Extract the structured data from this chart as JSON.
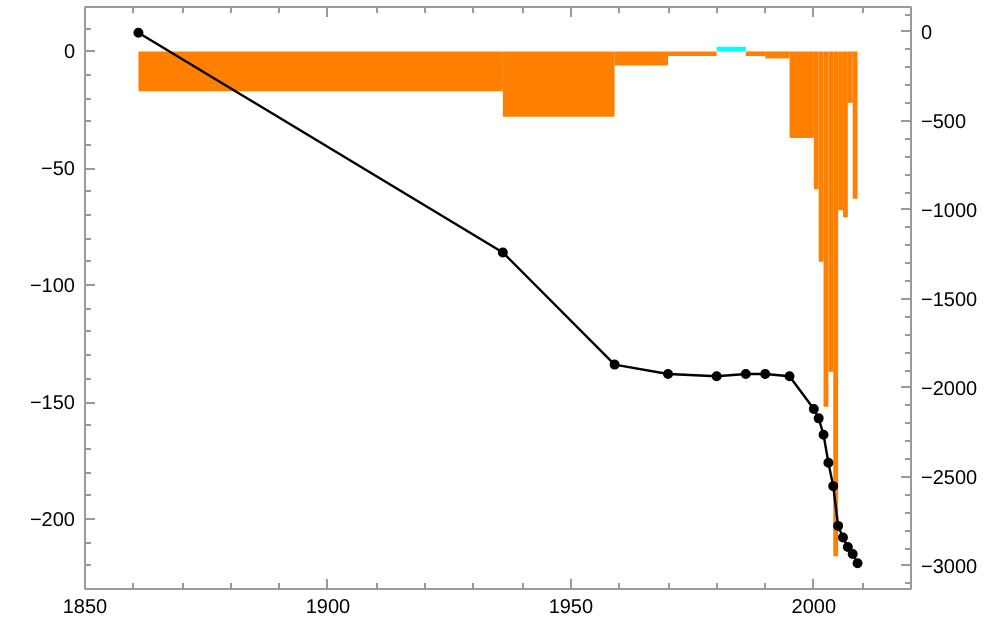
{
  "chart_data": {
    "type": "histogram",
    "xlim": [
      1850,
      2020
    ],
    "xticks": [
      1850,
      1900,
      1950,
      2000
    ],
    "ylim": [
      -230,
      19
    ],
    "yticks": [
      {
        "value": -200,
        "label": "−200"
      },
      {
        "value": -150,
        "label": "−150"
      },
      {
        "value": -100,
        "label": "−100"
      },
      {
        "value": -50,
        "label": "−50"
      },
      0
    ],
    "y2lim": [
      -3130,
      140
    ],
    "y2ticks": [
      {
        "value": -3000,
        "label": "−3000"
      },
      {
        "value": -2500,
        "label": "−2500"
      },
      {
        "value": -2000,
        "label": "−2000"
      },
      {
        "value": -1500,
        "label": "−1500"
      },
      {
        "value": -1000,
        "label": "−1000"
      },
      {
        "value": -500,
        "label": "−500"
      },
      0
    ],
    "grid": false,
    "marker": "circle",
    "line_style": "solid",
    "series": [
      {
        "bins": [
          1861,
          1936,
          1959,
          1970,
          1980,
          1986,
          1990,
          1995,
          2000,
          2001,
          2002,
          2003,
          2004,
          2005,
          2006,
          2007,
          2008,
          2009
        ],
        "values": [
          -17,
          -28,
          -6,
          -2,
          2,
          -2,
          -3,
          -37,
          -59,
          -90,
          -152,
          -137,
          -216,
          -68,
          -71,
          -22,
          -63
        ],
        "colors": [
          "#ff8000",
          "#ff8000",
          "#ff8000",
          "#ff8000",
          "#00ffff",
          "#ff8000",
          "#ff8000",
          "#ff8000",
          "#ff8000",
          "#ff8000",
          "#ff8000",
          "#ff8000",
          "#ff8000",
          "#ff8000",
          "#ff8000",
          "#ff8000",
          "#ff8000"
        ]
      },
      {
        "type": "line",
        "color": "#000000",
        "x": [
          1861,
          1936,
          1959,
          1970,
          1980,
          1986,
          1990,
          1995,
          2000,
          2001,
          2002,
          2003,
          2004,
          2005,
          2006,
          2007,
          2008,
          2009
        ],
        "values": [
          8,
          -86,
          -134,
          -138,
          -139,
          -138,
          -138,
          -139,
          -153,
          -157,
          -164,
          -176,
          -186,
          -203,
          -208,
          -212,
          -215,
          -219
        ]
      }
    ]
  }
}
